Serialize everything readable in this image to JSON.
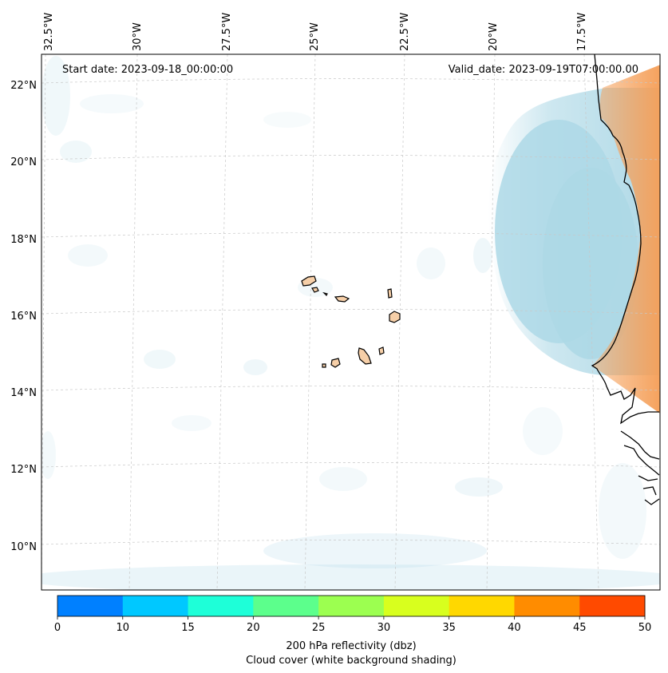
{
  "map": {
    "start_date_label": "Start date: 2023-09-18_00:00:00",
    "valid_date_label": "Valid_date: 2023-09-19T07:00:00.00",
    "longitude_labels": [
      "32.5°W",
      "30°W",
      "27.5°W",
      "25°W",
      "22.5°W",
      "20°W",
      "17.5°W"
    ],
    "latitude_labels": [
      "22°N",
      "20°N",
      "18°N",
      "16°N",
      "14°N",
      "12°N",
      "10°N"
    ]
  },
  "colorbar": {
    "ticks": [
      "0",
      "10",
      "15",
      "20",
      "25",
      "30",
      "35",
      "40",
      "45",
      "50"
    ],
    "colors": [
      "#0080ff",
      "#00c8ff",
      "#1effd8",
      "#5cff8c",
      "#9cff50",
      "#d8ff1e",
      "#ffd800",
      "#ff8c00",
      "#ff4a00"
    ],
    "label_line1": "200 hPa reflectivity (dbz)",
    "label_line2": "Cloud cover (white background shading)"
  },
  "colors": {
    "cloud": "#add8e6",
    "land_warm": "#f5a05a",
    "coast": "#000000"
  }
}
